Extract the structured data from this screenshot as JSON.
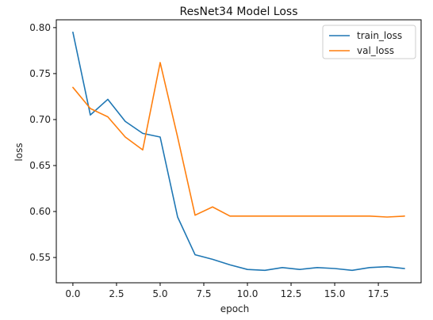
{
  "chart_data": {
    "type": "line",
    "title": "ResNet34 Model Loss",
    "xlabel": "epoch",
    "ylabel": "loss",
    "x": [
      0,
      1,
      2,
      3,
      4,
      5,
      6,
      7,
      8,
      9,
      10,
      11,
      12,
      13,
      14,
      15,
      16,
      17,
      18,
      19
    ],
    "xlim": [
      -0.95,
      19.95
    ],
    "ylim": [
      0.5225,
      0.8085
    ],
    "xticks": [
      0.0,
      2.5,
      5.0,
      7.5,
      10.0,
      12.5,
      15.0,
      17.5
    ],
    "xtick_labels": [
      "0.0",
      "2.5",
      "5.0",
      "7.5",
      "10.0",
      "12.5",
      "15.0",
      "17.5"
    ],
    "yticks": [
      0.55,
      0.6,
      0.65,
      0.7,
      0.75,
      0.8
    ],
    "ytick_labels": [
      "0.55",
      "0.60",
      "0.65",
      "0.70",
      "0.75",
      "0.80"
    ],
    "grid": false,
    "legend_position": "top-right",
    "series": [
      {
        "name": "train_loss",
        "color": "#1f77b4",
        "values": [
          0.795,
          0.705,
          0.722,
          0.698,
          0.685,
          0.681,
          0.594,
          0.553,
          0.548,
          0.542,
          0.537,
          0.536,
          0.539,
          0.537,
          0.539,
          0.538,
          0.536,
          0.539,
          0.54,
          0.538
        ]
      },
      {
        "name": "val_loss",
        "color": "#ff7f0e",
        "values": [
          0.735,
          0.712,
          0.703,
          0.681,
          0.667,
          0.762,
          0.681,
          0.596,
          0.605,
          0.595,
          0.595,
          0.595,
          0.595,
          0.595,
          0.595,
          0.595,
          0.595,
          0.595,
          0.594,
          0.595
        ]
      }
    ]
  }
}
